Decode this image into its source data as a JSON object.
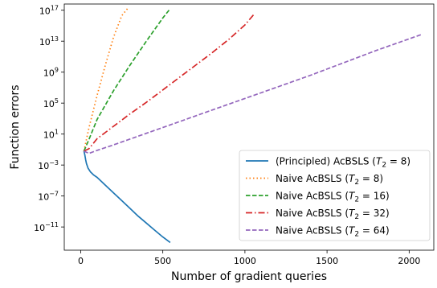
{
  "chart_data": {
    "type": "line",
    "title": "",
    "xlabel": "Number of gradient queries",
    "ylabel": "Function errors",
    "xlim": [
      -100,
      2150
    ],
    "ylim_log10": [
      -14,
      17.8
    ],
    "yscale": "log",
    "x_ticks": [
      0,
      500,
      1000,
      1500,
      2000
    ],
    "x_tick_labels": [
      "0",
      "500",
      "1000",
      "1500",
      "2000"
    ],
    "y_ticks_log10": [
      -11,
      -7,
      -3,
      1,
      5,
      9,
      13,
      17
    ],
    "y_tick_labels": [
      {
        "base": "10",
        "exp": "−11"
      },
      {
        "base": "10",
        "exp": "−7"
      },
      {
        "base": "10",
        "exp": "−3"
      },
      {
        "base": "10",
        "exp": "1"
      },
      {
        "base": "10",
        "exp": "5"
      },
      {
        "base": "10",
        "exp": "9"
      },
      {
        "base": "10",
        "exp": "13"
      },
      {
        "base": "10",
        "exp": "17"
      }
    ],
    "grid": false,
    "legend_position": "lower-right",
    "series": [
      {
        "name_parts": {
          "pre": "(Principled) AcBSLS (",
          "var": "T",
          "sub": "2",
          "post": " = 8)"
        },
        "color": "#1f77b4",
        "dash": "solid",
        "x": [
          20,
          25,
          30,
          35,
          45,
          60,
          80,
          100,
          130,
          160,
          200,
          250,
          300,
          350,
          400,
          450,
          500,
          545
        ],
        "log10_y": [
          -1.2,
          -1.7,
          -2.3,
          -2.8,
          -3.4,
          -3.9,
          -4.3,
          -4.6,
          -5.2,
          -5.8,
          -6.6,
          -7.6,
          -8.6,
          -9.6,
          -10.5,
          -11.4,
          -12.3,
          -13.0
        ]
      },
      {
        "name_parts": {
          "pre": "Naive AcBSLS (",
          "var": "T",
          "sub": "2",
          "post": " = 8)"
        },
        "color": "#ff7f0e",
        "dash": "dotted",
        "x": [
          20,
          50,
          100,
          150,
          200,
          250,
          285
        ],
        "log10_y": [
          -1.2,
          1.8,
          6.0,
          9.9,
          13.5,
          16.3,
          17.2
        ]
      },
      {
        "name_parts": {
          "pre": "Naive AcBSLS (",
          "var": "T",
          "sub": "2",
          "post": " = 16)"
        },
        "color": "#2ca02c",
        "dash": "dashed",
        "x": [
          20,
          50,
          100,
          200,
          300,
          400,
          500,
          545
        ],
        "log10_y": [
          -1.2,
          0.3,
          2.9,
          6.6,
          9.9,
          13.0,
          16.0,
          17.2
        ]
      },
      {
        "name_parts": {
          "pre": "Naive AcBSLS (",
          "var": "T",
          "sub": "2",
          "post": " = 32)"
        },
        "color": "#d62728",
        "dash": "dashdot",
        "x": [
          20,
          50,
          100,
          200,
          300,
          400,
          500,
          600,
          700,
          800,
          900,
          1000,
          1060
        ],
        "log10_y": [
          -1.2,
          -0.9,
          0.4,
          2.0,
          3.6,
          5.1,
          6.7,
          8.3,
          9.9,
          11.5,
          13.2,
          15.1,
          16.6
        ]
      },
      {
        "name_parts": {
          "pre": "Naive AcBSLS (",
          "var": "T",
          "sub": "2",
          "post": " = 64)"
        },
        "color": "#9467bd",
        "dash": "dashed",
        "x": [
          20,
          50,
          100,
          200,
          400,
          600,
          800,
          1000,
          1200,
          1400,
          1600,
          1800,
          2000,
          2080
        ],
        "log10_y": [
          -1.2,
          -1.5,
          -1.1,
          -0.4,
          1.1,
          2.6,
          4.1,
          5.6,
          7.1,
          8.6,
          10.2,
          11.8,
          13.3,
          13.9
        ]
      }
    ]
  }
}
